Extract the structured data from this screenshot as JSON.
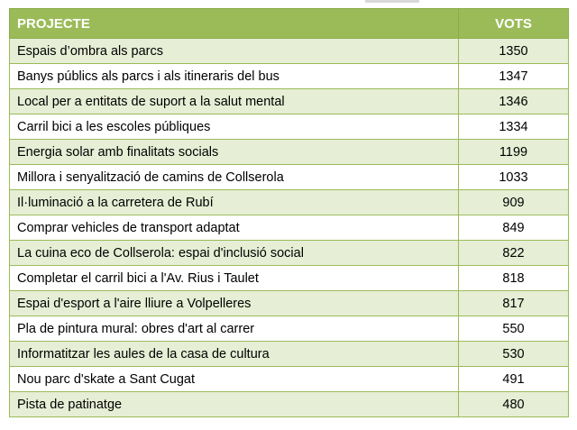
{
  "table": {
    "header_color": "#9bbb59",
    "stripe_color": "#e6eed5",
    "headers": [
      "PROJECTE",
      "VOTS"
    ],
    "rows": [
      {
        "project": "Espais d’ombra als parcs",
        "votes": "1350"
      },
      {
        "project": "Banys públics als parcs i als itineraris del bus",
        "votes": "1347"
      },
      {
        "project": "Local per a entitats de suport a la salut mental",
        "votes": "1346"
      },
      {
        "project": "Carril bici a les escoles públiques",
        "votes": "1334"
      },
      {
        "project": "Energia solar amb finalitats socials",
        "votes": "1199"
      },
      {
        "project": "Millora i senyalització de camins de Collserola",
        "votes": "1033"
      },
      {
        "project": "Il·luminació a la carretera de Rubí",
        "votes": "909"
      },
      {
        "project": "Comprar vehicles de transport adaptat",
        "votes": "849"
      },
      {
        "project": "La cuina eco de Collserola: espai d'inclusió social",
        "votes": "822"
      },
      {
        "project": "Completar el carril bici a l'Av. Rius i Taulet",
        "votes": "818"
      },
      {
        "project": "Espai d'esport a l'aire lliure a Volpelleres",
        "votes": "817"
      },
      {
        "project": "Pla de pintura mural: obres d'art al carrer",
        "votes": "550"
      },
      {
        "project": "Informatitzar les aules de la casa de cultura",
        "votes": "530"
      },
      {
        "project": "Nou parc d'skate a Sant Cugat",
        "votes": "491"
      },
      {
        "project": "Pista de patinatge",
        "votes": "480"
      }
    ]
  }
}
